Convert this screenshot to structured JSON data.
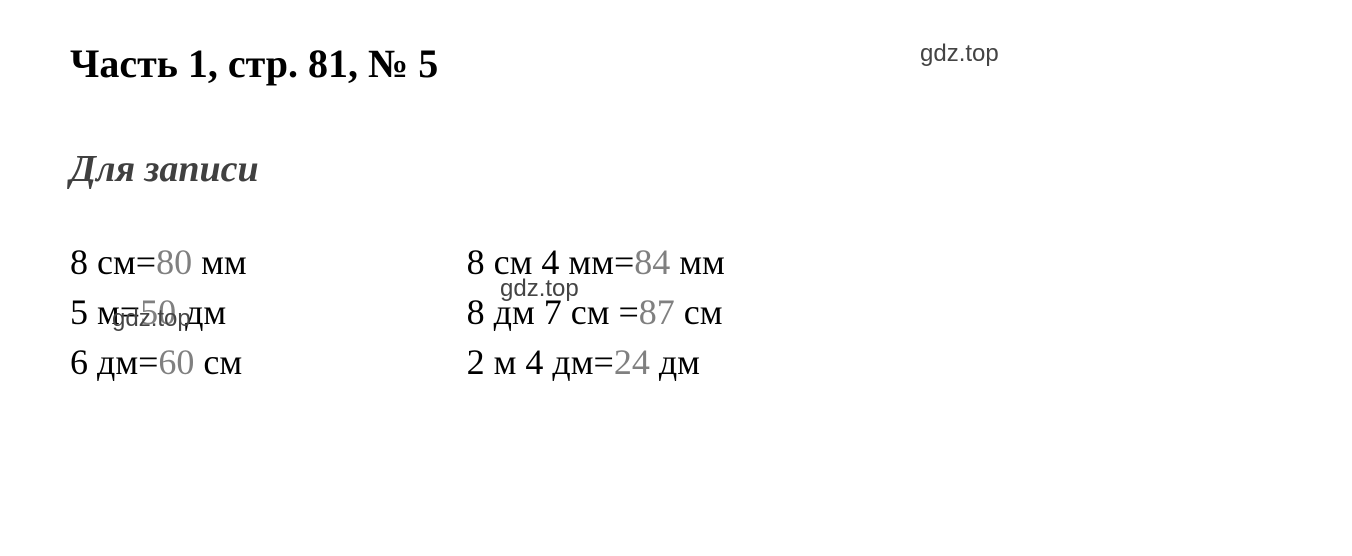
{
  "title": "Часть 1, стр. 81, № 5",
  "subtitle": "Для записи",
  "watermarks": {
    "w1": "gdz.top",
    "w2": "gdz.top",
    "w3": "gdz.top"
  },
  "equations": {
    "col1": [
      {
        "left": "8 см=",
        "result": "80",
        "unit": " мм"
      },
      {
        "left": "5 м=",
        "result": "50",
        "unit": " дм"
      },
      {
        "left": "6 дм=",
        "result": "60",
        "unit": " см"
      }
    ],
    "col2": [
      {
        "left": "8 см 4 мм=",
        "result": "84",
        "unit": " мм"
      },
      {
        "left": "8 дм 7 см =",
        "result": "87",
        "unit": " см"
      },
      {
        "left": "2 м 4 дм=",
        "result": "24",
        "unit": " дм"
      }
    ]
  },
  "styling": {
    "background_color": "#ffffff",
    "title_color": "#000000",
    "title_fontsize": 40,
    "subtitle_color": "#404040",
    "subtitle_fontsize": 38,
    "equation_fontsize": 36,
    "equation_color": "#000000",
    "result_color": "#808080",
    "watermark_color": "#444444",
    "watermark_fontsize": 24,
    "font_family": "Georgia, Times New Roman, serif"
  }
}
